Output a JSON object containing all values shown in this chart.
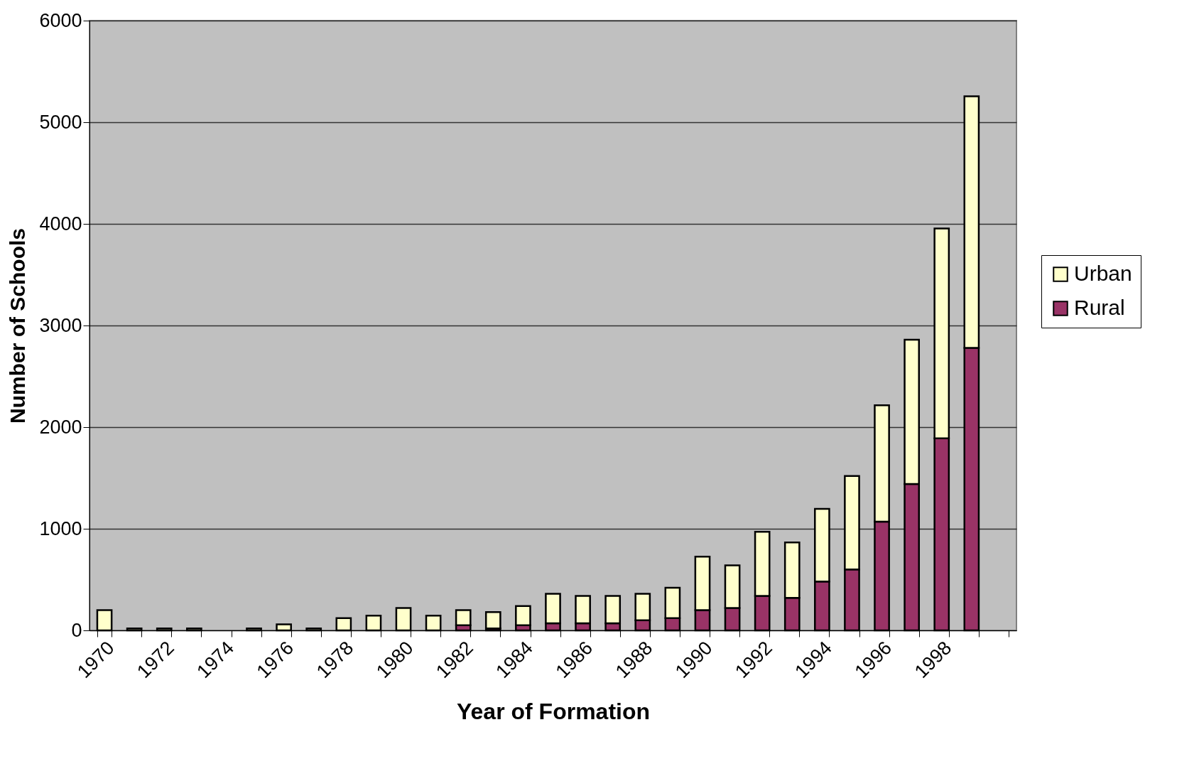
{
  "chart_data": {
    "type": "bar",
    "stacked": true,
    "xlabel": "Year of Formation",
    "ylabel": "Number of Schools",
    "categories": [
      "1970",
      null,
      "1972",
      null,
      "1974",
      null,
      "1976",
      null,
      "1978",
      null,
      "1980",
      null,
      "1982",
      null,
      "1984",
      null,
      "1986",
      null,
      "1988",
      null,
      "1990",
      null,
      "1992",
      null,
      "1994",
      null,
      "1996",
      null,
      "1998",
      null,
      null
    ],
    "series": [
      {
        "name": "Rural",
        "color": "#993366",
        "values": [
          null,
          null,
          null,
          null,
          null,
          null,
          null,
          null,
          null,
          null,
          null,
          null,
          50,
          20,
          50,
          70,
          70,
          70,
          100,
          120,
          200,
          220,
          340,
          320,
          480,
          600,
          1070,
          1440,
          1890,
          2780,
          null
        ]
      },
      {
        "name": "Urban",
        "color": "#ffffcc",
        "values": [
          200,
          20,
          20,
          20,
          null,
          20,
          60,
          20,
          120,
          145,
          220,
          145,
          150,
          160,
          190,
          290,
          270,
          270,
          260,
          300,
          525,
          420,
          630,
          545,
          715,
          920,
          1145,
          1420,
          2065,
          2475,
          null
        ]
      }
    ],
    "ylim": [
      0,
      6000
    ],
    "yticks": [
      0,
      1000,
      2000,
      3000,
      4000,
      5000,
      6000
    ],
    "grid": "y",
    "legend": "right"
  }
}
